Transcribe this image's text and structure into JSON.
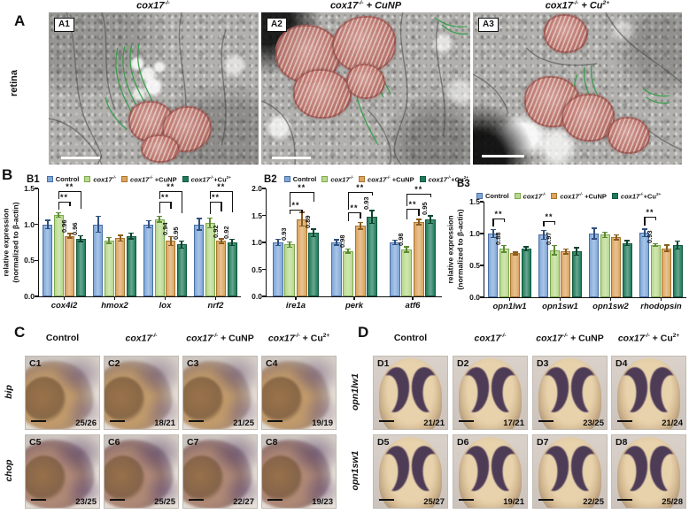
{
  "treatments": [
    {
      "segments": [
        {
          "t": "Control"
        }
      ]
    },
    {
      "segments": [
        {
          "t": "cox17",
          "i": true
        },
        {
          "t": "-/-",
          "sup": true,
          "i": true
        }
      ]
    },
    {
      "segments": [
        {
          "t": "cox17",
          "i": true
        },
        {
          "t": "-/-",
          "sup": true,
          "i": true
        },
        {
          "t": " + CuNP"
        }
      ]
    },
    {
      "segments": [
        {
          "t": "cox17",
          "i": true
        },
        {
          "t": "-/-",
          "sup": true,
          "i": true
        },
        {
          "t": " + Cu"
        },
        {
          "t": "2+",
          "sup": true
        }
      ]
    }
  ],
  "legend_labels": [
    [
      {
        "t": "Control"
      }
    ],
    [
      {
        "t": "cox17",
        "i": true
      },
      {
        "t": "-/-",
        "sup": true,
        "i": true
      }
    ],
    [
      {
        "t": "cox17",
        "i": true
      },
      {
        "t": "-/-",
        "sup": true,
        "i": true
      },
      {
        "t": " +CuNP"
      }
    ],
    [
      {
        "t": "cox17",
        "i": true
      },
      {
        "t": "-/-",
        "sup": true,
        "i": true
      },
      {
        "t": "+Cu"
      },
      {
        "t": "2+",
        "sup": true
      }
    ]
  ],
  "figure": {
    "panelA": {
      "label": "A",
      "side_label": "retina",
      "title_indices": [
        1,
        2,
        3
      ],
      "images": [
        {
          "tag": "A1"
        },
        {
          "tag": "A2"
        },
        {
          "tag": "A3"
        }
      ]
    },
    "panelB": {
      "label": "B"
    },
    "panelC": {
      "label": "C",
      "col_indices": [
        0,
        1,
        2,
        3
      ],
      "rows": [
        {
          "gene": "bip",
          "cells": [
            {
              "tag": "C1",
              "count": "25/26"
            },
            {
              "tag": "C2",
              "count": "18/21"
            },
            {
              "tag": "C3",
              "count": "21/25"
            },
            {
              "tag": "C4",
              "count": "19/19"
            }
          ]
        },
        {
          "gene": "chop",
          "cells": [
            {
              "tag": "C5",
              "count": "23/25"
            },
            {
              "tag": "C6",
              "count": "25/25"
            },
            {
              "tag": "C7",
              "count": "22/27"
            },
            {
              "tag": "C8",
              "count": "19/23"
            }
          ]
        }
      ]
    },
    "panelD": {
      "label": "D",
      "col_indices": [
        0,
        1,
        2,
        3
      ],
      "rows": [
        {
          "gene": "opn1lw1",
          "cells": [
            {
              "tag": "D1",
              "count": "21/21"
            },
            {
              "tag": "D2",
              "count": "17/21"
            },
            {
              "tag": "D3",
              "count": "23/25"
            },
            {
              "tag": "D4",
              "count": "21/24"
            }
          ]
        },
        {
          "gene": "opn1sw1",
          "cells": [
            {
              "tag": "D5",
              "count": "25/27"
            },
            {
              "tag": "D6",
              "count": "19/21"
            },
            {
              "tag": "D7",
              "count": "22/25"
            },
            {
              "tag": "D8",
              "count": "25/28"
            }
          ]
        }
      ]
    }
  },
  "colors": {
    "control_blue": "#7fa8d9",
    "cox17_green": "#b9d98c",
    "cunp_orange": "#dca55f",
    "cu2_darkgreen": "#1f7a5a",
    "mito_red": "#c9736b",
    "er_green": "#2f9e44"
  },
  "chart_data": [
    {
      "id": "B1",
      "type": "bar",
      "ylabel": "relative expression (normalized to β-actin)",
      "ylabel_lines": [
        "relative expression",
        "(normalized to β-actin)"
      ],
      "ylim": [
        0,
        1.5
      ],
      "yticks": [
        0,
        0.5,
        1,
        1.5
      ],
      "categories": [
        "cox4i2",
        "hmox2",
        "lox",
        "nrf2"
      ],
      "series": [
        {
          "name": "Control",
          "color": "#7fa8d9",
          "edge": "#4a6fa5",
          "err": "#2f4f7f",
          "values": [
            1.0,
            1.0,
            1.0,
            1.0
          ],
          "errors": [
            0.06,
            0.11,
            0.05,
            0.08
          ]
        },
        {
          "name": "cox17-/-",
          "color": "#b9d98c",
          "edge": "#7da84f",
          "err": "#5d8a33",
          "values": [
            1.13,
            0.78,
            1.07,
            1.02
          ],
          "errors": [
            0.03,
            0.04,
            0.04,
            0.07
          ]
        },
        {
          "name": "cox17-/- +CuNP",
          "color": "#dca55f",
          "edge": "#a8742f",
          "err": "#8a5c1e",
          "values": [
            0.84,
            0.81,
            0.77,
            0.77
          ],
          "errors": [
            0.03,
            0.04,
            0.06,
            0.03
          ]
        },
        {
          "name": "cox17-/-+Cu2+",
          "color": "#1f7a5a",
          "edge": "#125a40",
          "err": "#0c4430",
          "values": [
            0.8,
            0.84,
            0.72,
            0.75
          ],
          "errors": [
            0.04,
            0.04,
            0.05,
            0.04
          ]
        }
      ],
      "bar_labels": [
        {
          "cat": 0,
          "series": 2,
          "text": "0.96"
        },
        {
          "cat": 0,
          "series": 3,
          "text": "0.96"
        },
        {
          "cat": 2,
          "series": 2,
          "text": "0.94"
        },
        {
          "cat": 2,
          "series": 3,
          "text": "0.95"
        },
        {
          "cat": 3,
          "series": 2,
          "text": "0.92"
        },
        {
          "cat": 3,
          "series": 3,
          "text": "0.92"
        }
      ],
      "brackets": [
        {
          "cat": 0,
          "a": 1,
          "b": 2,
          "y": 1.32,
          "label": "**"
        },
        {
          "cat": 0,
          "a": 1,
          "b": 3,
          "y": 1.46,
          "label": "**"
        },
        {
          "cat": 2,
          "a": 1,
          "b": 2,
          "y": 1.32,
          "label": "**"
        },
        {
          "cat": 2,
          "a": 1,
          "b": 3,
          "y": 1.46,
          "label": "**"
        },
        {
          "cat": 3,
          "a": 1,
          "b": 2,
          "y": 1.32,
          "label": "**"
        },
        {
          "cat": 3,
          "a": 1,
          "b": 3,
          "y": 1.46,
          "label": "**"
        }
      ]
    },
    {
      "id": "B2",
      "type": "bar",
      "ylabel": null,
      "ylabel_lines": null,
      "ylim": [
        0,
        2
      ],
      "yticks": [
        0,
        0.5,
        1,
        1.5,
        2
      ],
      "categories": [
        "ire1a",
        "perk",
        "atf6"
      ],
      "series": [
        {
          "name": "Control",
          "color": "#7fa8d9",
          "edge": "#4a6fa5",
          "err": "#2f4f7f",
          "values": [
            1.0,
            1.0,
            1.0
          ],
          "errors": [
            0.06,
            0.05,
            0.04
          ]
        },
        {
          "name": "cox17-/-",
          "color": "#b9d98c",
          "edge": "#7da84f",
          "err": "#5d8a33",
          "values": [
            0.96,
            0.84,
            0.87
          ],
          "errors": [
            0.05,
            0.04,
            0.05
          ]
        },
        {
          "name": "cox17-/- +CuNP",
          "color": "#dca55f",
          "edge": "#a8742f",
          "err": "#8a5c1e",
          "values": [
            1.43,
            1.31,
            1.38
          ],
          "errors": [
            0.13,
            0.06,
            0.05
          ]
        },
        {
          "name": "cox17-/-+Cu2+",
          "color": "#1f7a5a",
          "edge": "#125a40",
          "err": "#0c4430",
          "values": [
            1.18,
            1.47,
            1.42
          ],
          "errors": [
            0.07,
            0.12,
            0.07
          ]
        }
      ],
      "bar_labels": [
        {
          "cat": 0,
          "series": 1,
          "text": "0.93"
        },
        {
          "cat": 0,
          "series": 3,
          "text": "0.89"
        },
        {
          "cat": 1,
          "series": 1,
          "text": "0.98"
        },
        {
          "cat": 1,
          "series": 3,
          "text": "0.93"
        },
        {
          "cat": 2,
          "series": 1,
          "text": "0.98"
        },
        {
          "cat": 2,
          "series": 3,
          "text": "0.95"
        }
      ],
      "brackets": [
        {
          "cat": 0,
          "a": 1,
          "b": 2,
          "y": 1.6,
          "label": "**"
        },
        {
          "cat": 0,
          "a": 1,
          "b": 3,
          "y": 1.93,
          "label": "**"
        },
        {
          "cat": 1,
          "a": 1,
          "b": 2,
          "y": 1.55,
          "label": "**"
        },
        {
          "cat": 1,
          "a": 1,
          "b": 3,
          "y": 1.93,
          "label": "**"
        },
        {
          "cat": 2,
          "a": 1,
          "b": 2,
          "y": 1.63,
          "label": "**"
        },
        {
          "cat": 2,
          "a": 1,
          "b": 3,
          "y": 1.9,
          "label": "**"
        }
      ]
    },
    {
      "id": "B3",
      "type": "bar",
      "ylabel": "relative expression (normalized to β-actin)",
      "ylabel_lines": [
        "relative expression",
        "(normalized to β-actin)"
      ],
      "ylim": [
        0,
        1.5
      ],
      "yticks": [
        0,
        0.5,
        1,
        1.5
      ],
      "categories": [
        "opn1lw1",
        "opn1sw1",
        "opn1sw2",
        "rhodopsin"
      ],
      "series": [
        {
          "name": "Control",
          "color": "#7fa8d9",
          "edge": "#4a6fa5",
          "err": "#2f4f7f",
          "values": [
            1.0,
            0.98,
            1.0,
            1.01
          ],
          "errors": [
            0.06,
            0.07,
            0.08,
            0.06
          ]
        },
        {
          "name": "cox17-/-",
          "color": "#b9d98c",
          "edge": "#7da84f",
          "err": "#5d8a33",
          "values": [
            0.76,
            0.74,
            0.98,
            0.82
          ],
          "errors": [
            0.05,
            0.07,
            0.04,
            0.02
          ]
        },
        {
          "name": "cox17-/- +CuNP",
          "color": "#dca55f",
          "edge": "#a8742f",
          "err": "#8a5c1e",
          "values": [
            0.69,
            0.72,
            0.94,
            0.77
          ],
          "errors": [
            0.02,
            0.04,
            0.04,
            0.05
          ]
        },
        {
          "name": "cox17-/-+Cu2+",
          "color": "#1f7a5a",
          "edge": "#125a40",
          "err": "#0c4430",
          "values": [
            0.76,
            0.72,
            0.85,
            0.82
          ],
          "errors": [
            0.03,
            0.06,
            0.04,
            0.06
          ]
        }
      ],
      "bar_labels": [
        {
          "cat": 0,
          "series": 1,
          "text": "0.88"
        },
        {
          "cat": 1,
          "series": 1,
          "text": "0.97"
        },
        {
          "cat": 3,
          "series": 1,
          "text": "0.93"
        }
      ],
      "brackets": [
        {
          "cat": 0,
          "a": 0,
          "b": 1,
          "y": 1.24,
          "label": "**"
        },
        {
          "cat": 1,
          "a": 0,
          "b": 1,
          "y": 1.2,
          "label": "**"
        },
        {
          "cat": 3,
          "a": 0,
          "b": 1,
          "y": 1.26,
          "label": "**"
        }
      ]
    }
  ]
}
